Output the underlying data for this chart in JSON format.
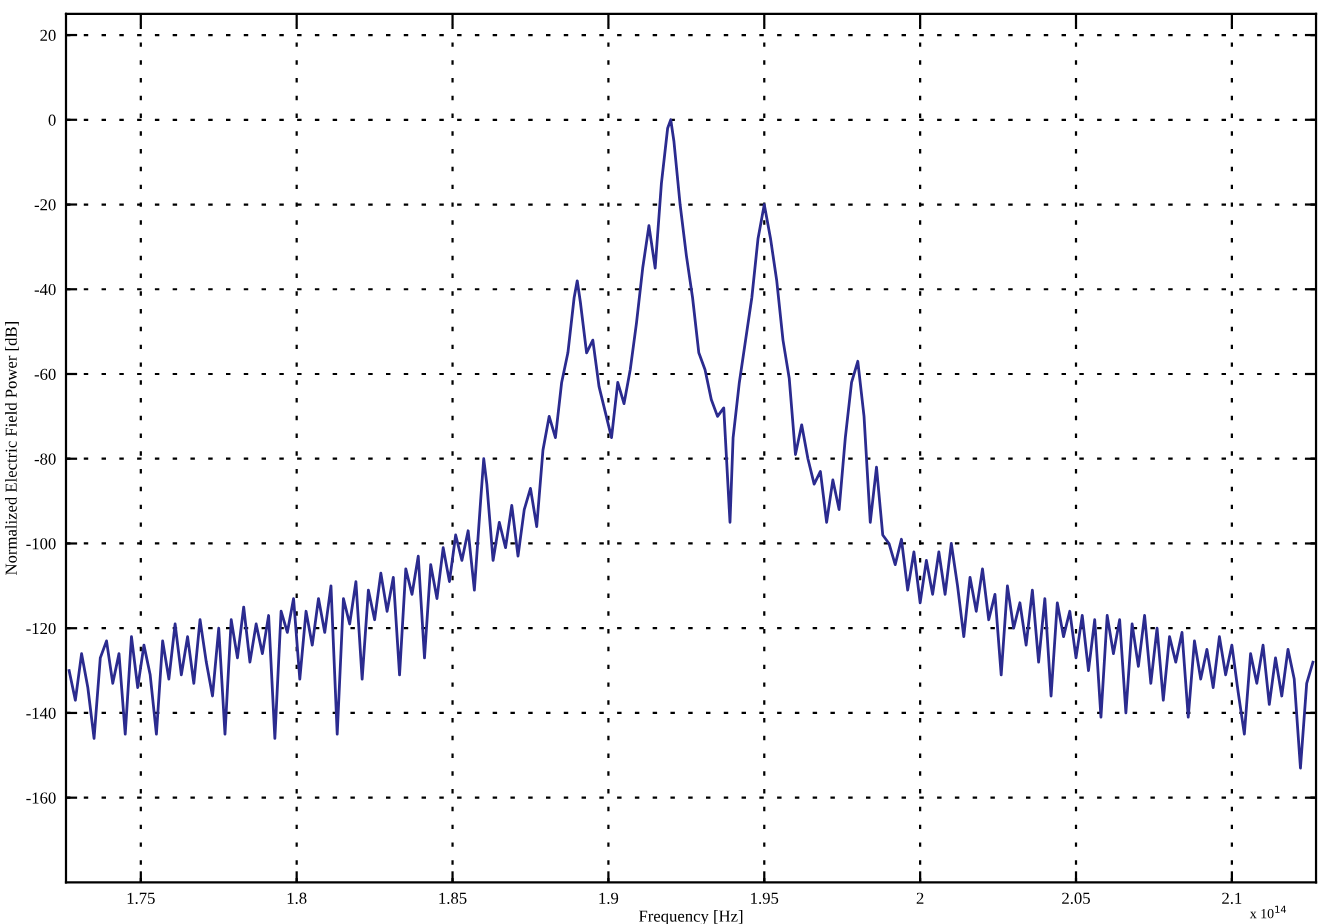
{
  "chart_data": {
    "type": "line",
    "xlabel": "Frequency [Hz]",
    "ylabel": "Normalized Electric Field Power [dB]",
    "annotations": [
      "x 10$^{14}$"
    ],
    "xlim": [
      1.726,
      2.127
    ],
    "xticks": [
      1.75,
      1.8,
      1.85,
      1.9,
      1.95,
      2,
      2.05,
      2.1
    ],
    "ylim": [
      -180,
      25
    ],
    "yticks": [
      -160,
      -140,
      -120,
      -100,
      -80,
      -60,
      -40,
      -20,
      0,
      20
    ],
    "grid": true,
    "line_style": "solid",
    "marker": "none",
    "series": [
      {
        "color": "#2b2b8f",
        "x": [
          1.727,
          1.729,
          1.731,
          1.733,
          1.735,
          1.737,
          1.739,
          1.741,
          1.743,
          1.745,
          1.747,
          1.749,
          1.751,
          1.753,
          1.755,
          1.757,
          1.759,
          1.761,
          1.763,
          1.765,
          1.767,
          1.769,
          1.771,
          1.773,
          1.775,
          1.777,
          1.779,
          1.781,
          1.783,
          1.785,
          1.787,
          1.789,
          1.791,
          1.793,
          1.795,
          1.797,
          1.799,
          1.801,
          1.803,
          1.805,
          1.807,
          1.809,
          1.811,
          1.813,
          1.815,
          1.817,
          1.819,
          1.821,
          1.823,
          1.825,
          1.827,
          1.829,
          1.831,
          1.833,
          1.835,
          1.837,
          1.839,
          1.841,
          1.843,
          1.845,
          1.847,
          1.849,
          1.851,
          1.853,
          1.855,
          1.857,
          1.859,
          1.86,
          1.861,
          1.863,
          1.865,
          1.867,
          1.869,
          1.871,
          1.873,
          1.875,
          1.877,
          1.879,
          1.881,
          1.883,
          1.885,
          1.887,
          1.889,
          1.89,
          1.891,
          1.893,
          1.895,
          1.897,
          1.899,
          1.901,
          1.903,
          1.905,
          1.907,
          1.909,
          1.911,
          1.913,
          1.915,
          1.917,
          1.919,
          1.92,
          1.921,
          1.923,
          1.925,
          1.927,
          1.929,
          1.931,
          1.933,
          1.935,
          1.937,
          1.939,
          1.94,
          1.942,
          1.944,
          1.946,
          1.948,
          1.95,
          1.952,
          1.954,
          1.956,
          1.958,
          1.96,
          1.962,
          1.964,
          1.966,
          1.968,
          1.97,
          1.972,
          1.974,
          1.976,
          1.978,
          1.98,
          1.982,
          1.984,
          1.986,
          1.988,
          1.99,
          1.992,
          1.994,
          1.996,
          1.998,
          2.0,
          2.002,
          2.004,
          2.006,
          2.008,
          2.01,
          2.012,
          2.014,
          2.016,
          2.018,
          2.02,
          2.022,
          2.024,
          2.026,
          2.028,
          2.03,
          2.032,
          2.034,
          2.036,
          2.038,
          2.04,
          2.042,
          2.044,
          2.046,
          2.048,
          2.05,
          2.052,
          2.054,
          2.056,
          2.058,
          2.06,
          2.062,
          2.064,
          2.066,
          2.068,
          2.07,
          2.072,
          2.074,
          2.076,
          2.078,
          2.08,
          2.082,
          2.084,
          2.086,
          2.088,
          2.09,
          2.092,
          2.094,
          2.096,
          2.098,
          2.1,
          2.102,
          2.104,
          2.106,
          2.108,
          2.11,
          2.112,
          2.114,
          2.116,
          2.118,
          2.12,
          2.122,
          2.124,
          2.126
        ],
        "values": [
          -130,
          -137,
          -126,
          -134,
          -146,
          -127,
          -123,
          -133,
          -126,
          -145,
          -122,
          -134,
          -124,
          -131,
          -145,
          -123,
          -132,
          -119,
          -131,
          -122,
          -133,
          -118,
          -128,
          -136,
          -120,
          -145,
          -118,
          -127,
          -115,
          -128,
          -119,
          -126,
          -117,
          -146,
          -116,
          -121,
          -113,
          -132,
          -116,
          -124,
          -113,
          -121,
          -110,
          -145,
          -113,
          -119,
          -109,
          -132,
          -111,
          -118,
          -107,
          -116,
          -108,
          -131,
          -106,
          -112,
          -103,
          -127,
          -105,
          -113,
          -101,
          -109,
          -98,
          -104,
          -97,
          -111,
          -90,
          -80,
          -86,
          -104,
          -95,
          -101,
          -91,
          -103,
          -92,
          -87,
          -96,
          -78,
          -70,
          -75,
          -62,
          -55,
          -42,
          -38,
          -43,
          -55,
          -52,
          -63,
          -69,
          -75,
          -62,
          -67,
          -59,
          -48,
          -35,
          -25,
          -35,
          -15,
          -2,
          0,
          -5,
          -20,
          -32,
          -42,
          -55,
          -59,
          -66,
          -70,
          -68,
          -95,
          -75,
          -62,
          -52,
          -42,
          -28,
          -20,
          -28,
          -38,
          -52,
          -61,
          -79,
          -72,
          -80,
          -86,
          -83,
          -95,
          -85,
          -92,
          -75,
          -62,
          -57,
          -70,
          -95,
          -82,
          -98,
          -100,
          -105,
          -99,
          -111,
          -102,
          -114,
          -104,
          -112,
          -102,
          -112,
          -100,
          -110,
          -122,
          -108,
          -116,
          -106,
          -118,
          -112,
          -131,
          -110,
          -120,
          -114,
          -124,
          -111,
          -128,
          -113,
          -136,
          -114,
          -122,
          -116,
          -127,
          -117,
          -130,
          -118,
          -141,
          -117,
          -126,
          -118,
          -140,
          -119,
          -129,
          -117,
          -133,
          -120,
          -137,
          -122,
          -128,
          -121,
          -141,
          -123,
          -132,
          -125,
          -134,
          -122,
          -131,
          -124,
          -135,
          -145,
          -126,
          -133,
          -124,
          -138,
          -127,
          -136,
          -125,
          -132,
          -153,
          -133,
          -128
        ]
      }
    ]
  }
}
